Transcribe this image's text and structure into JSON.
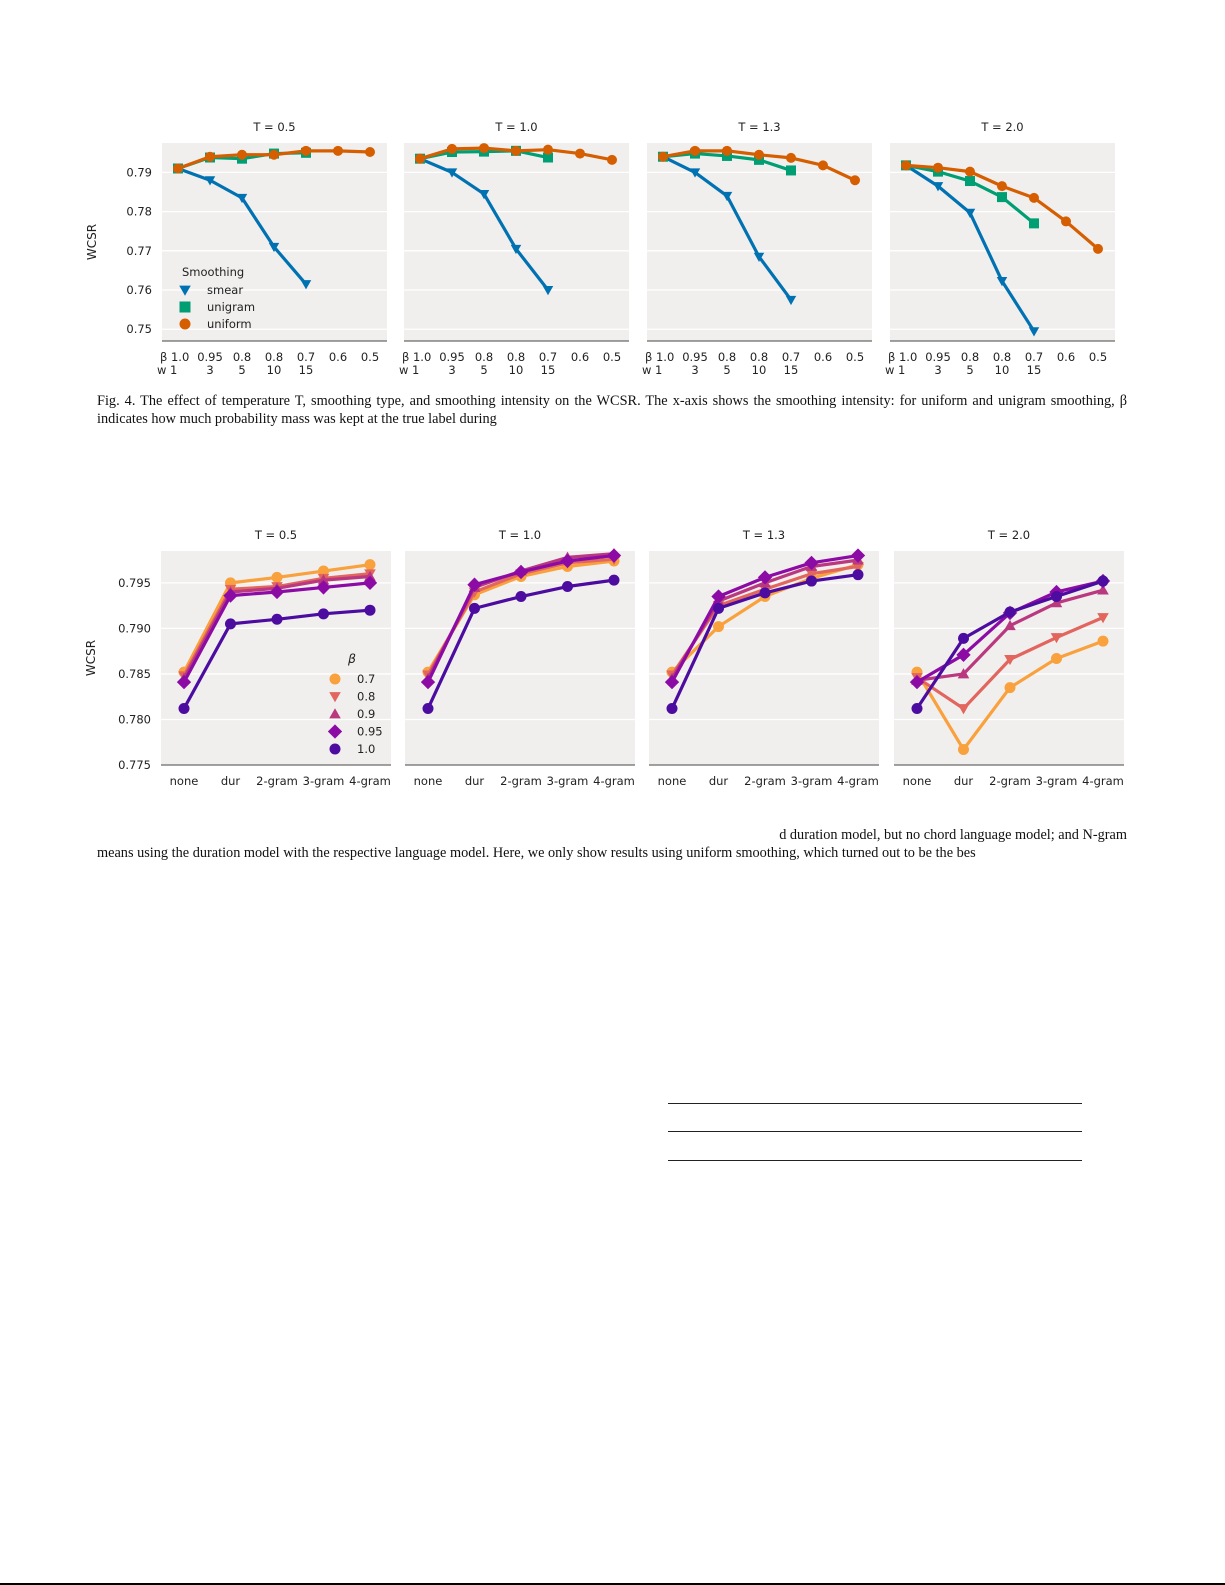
{
  "chart_data": [
    {
      "type": "line",
      "figure": "smoothing",
      "ylabel": "WCSR",
      "ylim": [
        0.747,
        0.7975
      ],
      "yticks": [
        0.75,
        0.76,
        0.77,
        0.78,
        0.79
      ],
      "ytick_labels": [
        "0.75",
        "0.76",
        "0.77",
        "0.78",
        "0.79"
      ],
      "x_beta_labels": [
        "β 1.0",
        "0.95",
        "0.8",
        "0.8",
        "0.7",
        "0.6",
        "0.5"
      ],
      "x_w_labels": [
        "w  1",
        "3",
        "5",
        "10",
        "15",
        "",
        ""
      ],
      "legend_title": "Smoothing",
      "legend_position": "lower-left",
      "series_styles": [
        {
          "name": "smear",
          "color": "#0072b2",
          "marker": "triangle-down"
        },
        {
          "name": "unigram",
          "color": "#009e73",
          "marker": "square"
        },
        {
          "name": "uniform",
          "color": "#d55e00",
          "marker": "circle"
        }
      ],
      "panels": [
        {
          "title": "T = 0.5",
          "series": [
            {
              "name": "smear",
              "values": [
                0.791,
                0.788,
                0.7835,
                0.771,
                0.7615
              ]
            },
            {
              "name": "unigram",
              "values": [
                0.791,
                0.7938,
                0.7935,
                0.7948,
                0.795
              ]
            },
            {
              "name": "uniform",
              "values": [
                0.791,
                0.794,
                0.7945,
                0.7945,
                0.7955,
                0.7955,
                0.7952
              ]
            }
          ]
        },
        {
          "title": "T = 1.0",
          "series": [
            {
              "name": "smear",
              "values": [
                0.7935,
                0.79,
                0.7845,
                0.7705,
                0.76
              ]
            },
            {
              "name": "unigram",
              "values": [
                0.7935,
                0.7952,
                0.7953,
                0.7955,
                0.7938
              ]
            },
            {
              "name": "uniform",
              "values": [
                0.7935,
                0.796,
                0.7962,
                0.7955,
                0.7958,
                0.7948,
                0.7932
              ]
            }
          ]
        },
        {
          "title": "T = 1.3",
          "series": [
            {
              "name": "smear",
              "values": [
                0.794,
                0.79,
                0.784,
                0.7685,
                0.7575
              ]
            },
            {
              "name": "unigram",
              "values": [
                0.794,
                0.7948,
                0.7942,
                0.7932,
                0.7905
              ]
            },
            {
              "name": "uniform",
              "values": [
                0.794,
                0.7955,
                0.7955,
                0.7945,
                0.7937,
                0.7918,
                0.788
              ]
            }
          ]
        },
        {
          "title": "T = 2.0",
          "series": [
            {
              "name": "smear",
              "values": [
                0.7918,
                0.7865,
                0.7797,
                0.7623,
                0.7495
              ]
            },
            {
              "name": "unigram",
              "values": [
                0.7918,
                0.7902,
                0.7878,
                0.7837,
                0.777
              ]
            },
            {
              "name": "uniform",
              "values": [
                0.7918,
                0.7912,
                0.7902,
                0.7865,
                0.7835,
                0.7775,
                0.7705
              ]
            }
          ]
        }
      ]
    },
    {
      "type": "line",
      "figure": "language-model",
      "ylabel": "WCSR",
      "ylim": [
        0.775,
        0.7985
      ],
      "yticks": [
        0.775,
        0.78,
        0.785,
        0.79,
        0.795
      ],
      "ytick_labels": [
        "0.775",
        "0.780",
        "0.785",
        "0.790",
        "0.795"
      ],
      "categories": [
        "none",
        "dur",
        "2-gram",
        "3-gram",
        "4-gram"
      ],
      "legend_title": "β",
      "legend_position": "lower-right",
      "series_styles": [
        {
          "name": "0.7",
          "color": "#f9a13d",
          "marker": "circle"
        },
        {
          "name": "0.8",
          "color": "#e2655e",
          "marker": "triangle-down"
        },
        {
          "name": "0.9",
          "color": "#b9387f",
          "marker": "triangle-up"
        },
        {
          "name": "0.95",
          "color": "#8c0ba5",
          "marker": "diamond"
        },
        {
          "name": "1.0",
          "color": "#4c0ca0",
          "marker": "circle"
        }
      ],
      "panels": [
        {
          "title": "T = 0.5",
          "series": [
            {
              "name": "0.7",
              "values": [
                0.7852,
                0.795,
                0.7956,
                0.7963,
                0.797
              ]
            },
            {
              "name": "0.8",
              "values": [
                0.7848,
                0.7943,
                0.7946,
                0.7955,
                0.796
              ]
            },
            {
              "name": "0.9",
              "values": [
                0.7845,
                0.794,
                0.7944,
                0.7953,
                0.7957
              ]
            },
            {
              "name": "0.95",
              "values": [
                0.7841,
                0.7936,
                0.794,
                0.7945,
                0.795
              ]
            },
            {
              "name": "1.0",
              "values": [
                0.7812,
                0.7905,
                0.791,
                0.7916,
                0.792
              ]
            }
          ]
        },
        {
          "title": "T = 1.0",
          "series": [
            {
              "name": "0.7",
              "values": [
                0.7852,
                0.7937,
                0.7957,
                0.7968,
                0.7974
              ]
            },
            {
              "name": "0.8",
              "values": [
                0.7849,
                0.794,
                0.796,
                0.7972,
                0.7976
              ]
            },
            {
              "name": "0.9",
              "values": [
                0.7845,
                0.7945,
                0.7963,
                0.7978,
                0.7982
              ]
            },
            {
              "name": "0.95",
              "values": [
                0.7841,
                0.7948,
                0.7962,
                0.7974,
                0.798
              ]
            },
            {
              "name": "1.0",
              "values": [
                0.7812,
                0.7922,
                0.7935,
                0.7946,
                0.7953
              ]
            }
          ]
        },
        {
          "title": "T = 1.3",
          "series": [
            {
              "name": "0.7",
              "values": [
                0.7852,
                0.7902,
                0.7935,
                0.7955,
                0.797
              ]
            },
            {
              "name": "0.8",
              "values": [
                0.7849,
                0.7925,
                0.7943,
                0.796,
                0.7968
              ]
            },
            {
              "name": "0.9",
              "values": [
                0.7845,
                0.793,
                0.795,
                0.7968,
                0.7975
              ]
            },
            {
              "name": "0.95",
              "values": [
                0.7841,
                0.7935,
                0.7956,
                0.7972,
                0.798
              ]
            },
            {
              "name": "1.0",
              "values": [
                0.7812,
                0.7922,
                0.7939,
                0.7952,
                0.7959
              ]
            }
          ]
        },
        {
          "title": "T = 2.0",
          "series": [
            {
              "name": "0.7",
              "values": [
                0.7852,
                0.7767,
                0.7835,
                0.7867,
                0.7886
              ]
            },
            {
              "name": "0.8",
              "values": [
                0.7846,
                0.7812,
                0.7866,
                0.789,
                0.7912
              ]
            },
            {
              "name": "0.9",
              "values": [
                0.7843,
                0.785,
                0.7903,
                0.7928,
                0.7942
              ]
            },
            {
              "name": "0.95",
              "values": [
                0.7841,
                0.7871,
                0.7917,
                0.794,
                0.7952
              ]
            },
            {
              "name": "1.0",
              "values": [
                0.7812,
                0.7889,
                0.7918,
                0.7935,
                0.7952
              ]
            }
          ]
        }
      ]
    }
  ],
  "captions": {
    "fig4": "Fig. 4.  The effect of temperature T, smoothing type, and smoothing intensity on the WCSR. The x-axis shows the smoothing intensity: for uniform and unigram smoothing, β indicates how much probability mass was kept at the true label during",
    "fig5_line1": "d duration model, but no chord language model; and N-gram",
    "fig5_line2": "means using the duration model with the respective language model. Here, we only show results using uniform smoothing, which turned out to be the bes"
  }
}
